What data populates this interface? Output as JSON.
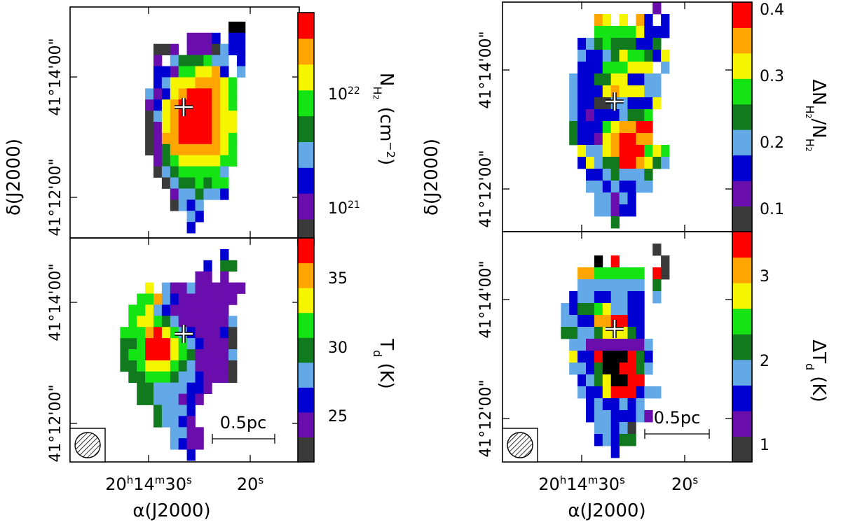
{
  "figure": {
    "palette": [
      "#3a3a3a",
      "#6a0dad",
      "#0000d2",
      "#63a9e8",
      "#117a1f",
      "#14e414",
      "#f5f500",
      "#ffa500",
      "#ff0000"
    ],
    "ra_axis_label": "α(J2000)",
    "dec_axis_label": "δ(J2000)",
    "ra_ticks": [
      "20h14m30s",
      "20s"
    ],
    "dec_ticks": [
      "41°12'00\"",
      "41°14'00\""
    ],
    "dec_tick_bottom": "41°12'00\"",
    "scale_bar_label": "0.5pc",
    "center_marker": "+"
  },
  "chart_data": [
    {
      "id": "nh2",
      "type": "heatmap",
      "title": "N_H2 (cm^-2)",
      "colorbar_label": "N_H2 (cm^-2)",
      "colorbar_ticks": [
        "10^22",
        "10^21"
      ],
      "colorbar_scale": "log",
      "center_marker": [
        0,
        0
      ],
      "rows": [
        "..........................",
        "...................99.....",
        "..............1112.22.....",
        "..........001.1110322.....",
        "..........1.3444533.2.....",
        "..........221556672.3.....",
        "..........2366677765......",
        ".........31267888765......",
        ".........12678888765......",
        ".........03678888766......",
        ".........01678888766......",
        ".........01778888765......",
        ".........01477777765......",
        "..........1456666655......",
        "..........034555553.......",
        "...........03445455.......",
        "............1334332.......",
        "............0323..........",
        "..............32..........",
        "..............2...........",
        ".........................."
      ]
    },
    {
      "id": "td",
      "type": "heatmap",
      "title": "T_d (K)",
      "colorbar_label": "T_d (K)",
      "colorbar_ticks": [
        "35",
        "30",
        "25"
      ],
      "colorbar_scale": "linear",
      "center_marker": [
        0,
        0
      ],
      "rows": [
        "..........................",
        "..................2.......",
        "................2.44......",
        "...............11.1.......",
        ".........6.3113111111.....",
        "........557321111111......",
        ".......556321111111.......",
        ".......5665431111113......",
        "......55578653211120......",
        "......44588865321110......",
        "......45588865411113......",
        "......44566654311110......",
        ".......4455543321110......",
        "........443333221.........",
        "........44333121..........",
        "..........43332...........",
        "..........43321...........",
        "............3311..........",
        "............3211..........",
        "..............2...........",
        ".........................."
      ]
    },
    {
      "id": "dnh2",
      "type": "heatmap",
      "title": "ΔN_H2/N_H2",
      "colorbar_label": "ΔN_H2/N_H2",
      "colorbar_ticks": [
        "0.4",
        "0.3",
        "0.2",
        "0.1"
      ],
      "colorbar_scale": "linear",
      "center_marker": [
        0,
        0
      ],
      "rows": [
        "..................1.......",
        "...........76.6.72.2......",
        "...........555556222......",
        ".........2345444224.......",
        ".........32234655426......",
        ".........222555666.3......",
        "........32244662233.......",
        "........32226766633.......",
        "........32200332226.......",
        "........3212223445........",
        "........4222567788........",
        "........4221678877........",
        ".........63367888565......",
        ".........26344887643......",
        "..........22343334........",
        "..........33232233........",
        "...........33132..........",
        "...........33122..........",
        ".............4............",
        ".........................."
      ]
    },
    {
      "id": "dtd",
      "type": "heatmap",
      "title": "ΔT_d (K)",
      "colorbar_label": "ΔT_d (K)",
      "colorbar_ticks": [
        "3",
        "2",
        "1"
      ],
      "colorbar_scale": "linear",
      "center_marker": [
        0,
        0
      ],
      "rows": [
        "..........................",
        "..................0.......",
        "...........9.8.....0......",
        ".........77555555.80......",
        ".........33333333.4.......",
        "........233223322.3.......",
        ".......3244563322........",
        ".......3322778822........",
        ".......4433466642........",
        "........3311111113........",
        "........6228999842........",
        "........3324998843........",
        ".........23469988.........",
        ".........3226888233.......",
        "..........2322323.........",
        "..........23322231........",
        "...........33230..........",
        "...........23244..........",
        ".............2............",
        ".........................."
      ]
    }
  ]
}
